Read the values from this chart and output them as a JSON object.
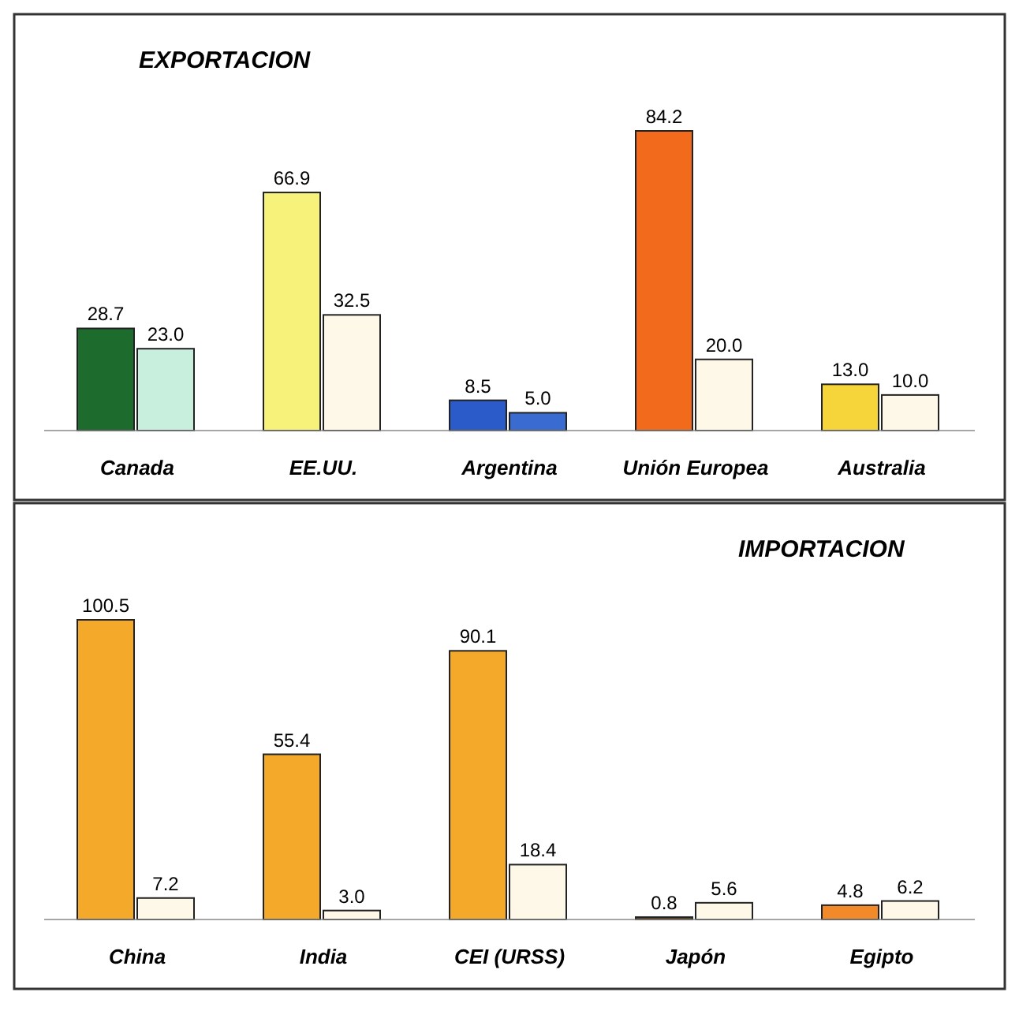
{
  "chart_data": [
    {
      "type": "bar",
      "title": "EXPORTACION",
      "categories": [
        "Canada",
        "EE.UU.",
        "Argentina",
        "Unión Europea",
        "Australia"
      ],
      "series": [
        {
          "colors": [
            "#1e6b2e",
            "#f7f27a",
            "#2a5bc9",
            "#f26a1b",
            "#f5d53a"
          ],
          "values": [
            28.7,
            66.9,
            8.5,
            84.2,
            13.0
          ],
          "value_labels": [
            "28.7",
            "66.9",
            "8.5",
            "84.2",
            "13.0"
          ]
        },
        {
          "colors": [
            "#c8eedd",
            "#fdf8e8",
            "#3a6bd0",
            "#fdf8e8",
            "#fdf8e8"
          ],
          "values": [
            23.0,
            32.5,
            5.0,
            20.0,
            10.0
          ],
          "value_labels": [
            "23.0",
            "32.5",
            "5.0",
            "20.0",
            "10.0"
          ]
        }
      ]
    },
    {
      "type": "bar",
      "title": "IMPORTACION",
      "categories": [
        "China",
        "India",
        "CEI (URSS)",
        "Japón",
        "Egipto"
      ],
      "series": [
        {
          "colors": [
            "#f4a92a",
            "#f4a92a",
            "#f4a92a",
            "#5a3a10",
            "#f28a2a"
          ],
          "values": [
            100.5,
            55.4,
            90.1,
            0.8,
            4.8
          ],
          "value_labels": [
            "100.5",
            "55.4",
            "90.1",
            "0.8",
            "4.8"
          ]
        },
        {
          "colors": [
            "#fdf8e8",
            "#fdf8e8",
            "#fdf8e8",
            "#fdf8e8",
            "#fdf8e8"
          ],
          "values": [
            7.2,
            3.0,
            18.4,
            5.6,
            6.2
          ],
          "value_labels": [
            "7.2",
            "3.0",
            "18.4",
            "5.6",
            "6.2"
          ]
        }
      ]
    }
  ]
}
